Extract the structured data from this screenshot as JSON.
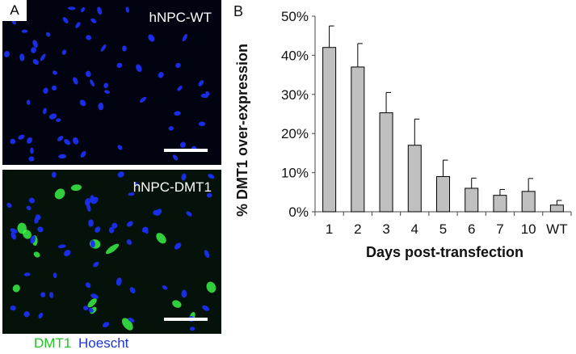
{
  "panel_a": {
    "label": "A",
    "top_image_caption": "hNPC-WT",
    "bottom_image_caption": "hNPC-DMT1",
    "legend_dmt1": "DMT1",
    "legend_hoescht": "Hoescht",
    "nucleus_color": "#1a2ff0",
    "dmt1_color": "#3cff4a"
  },
  "panel_b": {
    "label": "B"
  },
  "chart_data": {
    "type": "bar",
    "categories": [
      "1",
      "2",
      "3",
      "4",
      "5",
      "6",
      "7",
      "10",
      "WT"
    ],
    "values": [
      42,
      37,
      25.3,
      17,
      9,
      6,
      4.2,
      5.2,
      1.7
    ],
    "error_upper": [
      5.5,
      6,
      5.2,
      6.7,
      4.2,
      2.6,
      1.5,
      3.3,
      1.2
    ],
    "xlabel": "Days post-transfection",
    "ylabel": "% DMT1 over-expression",
    "ylim": [
      0,
      50
    ],
    "yticks": [
      0,
      10,
      20,
      30,
      40,
      50
    ],
    "ytick_format": "percent",
    "grid": false,
    "bar_fill": "#c0c0c0",
    "bar_stroke": "#000000"
  }
}
